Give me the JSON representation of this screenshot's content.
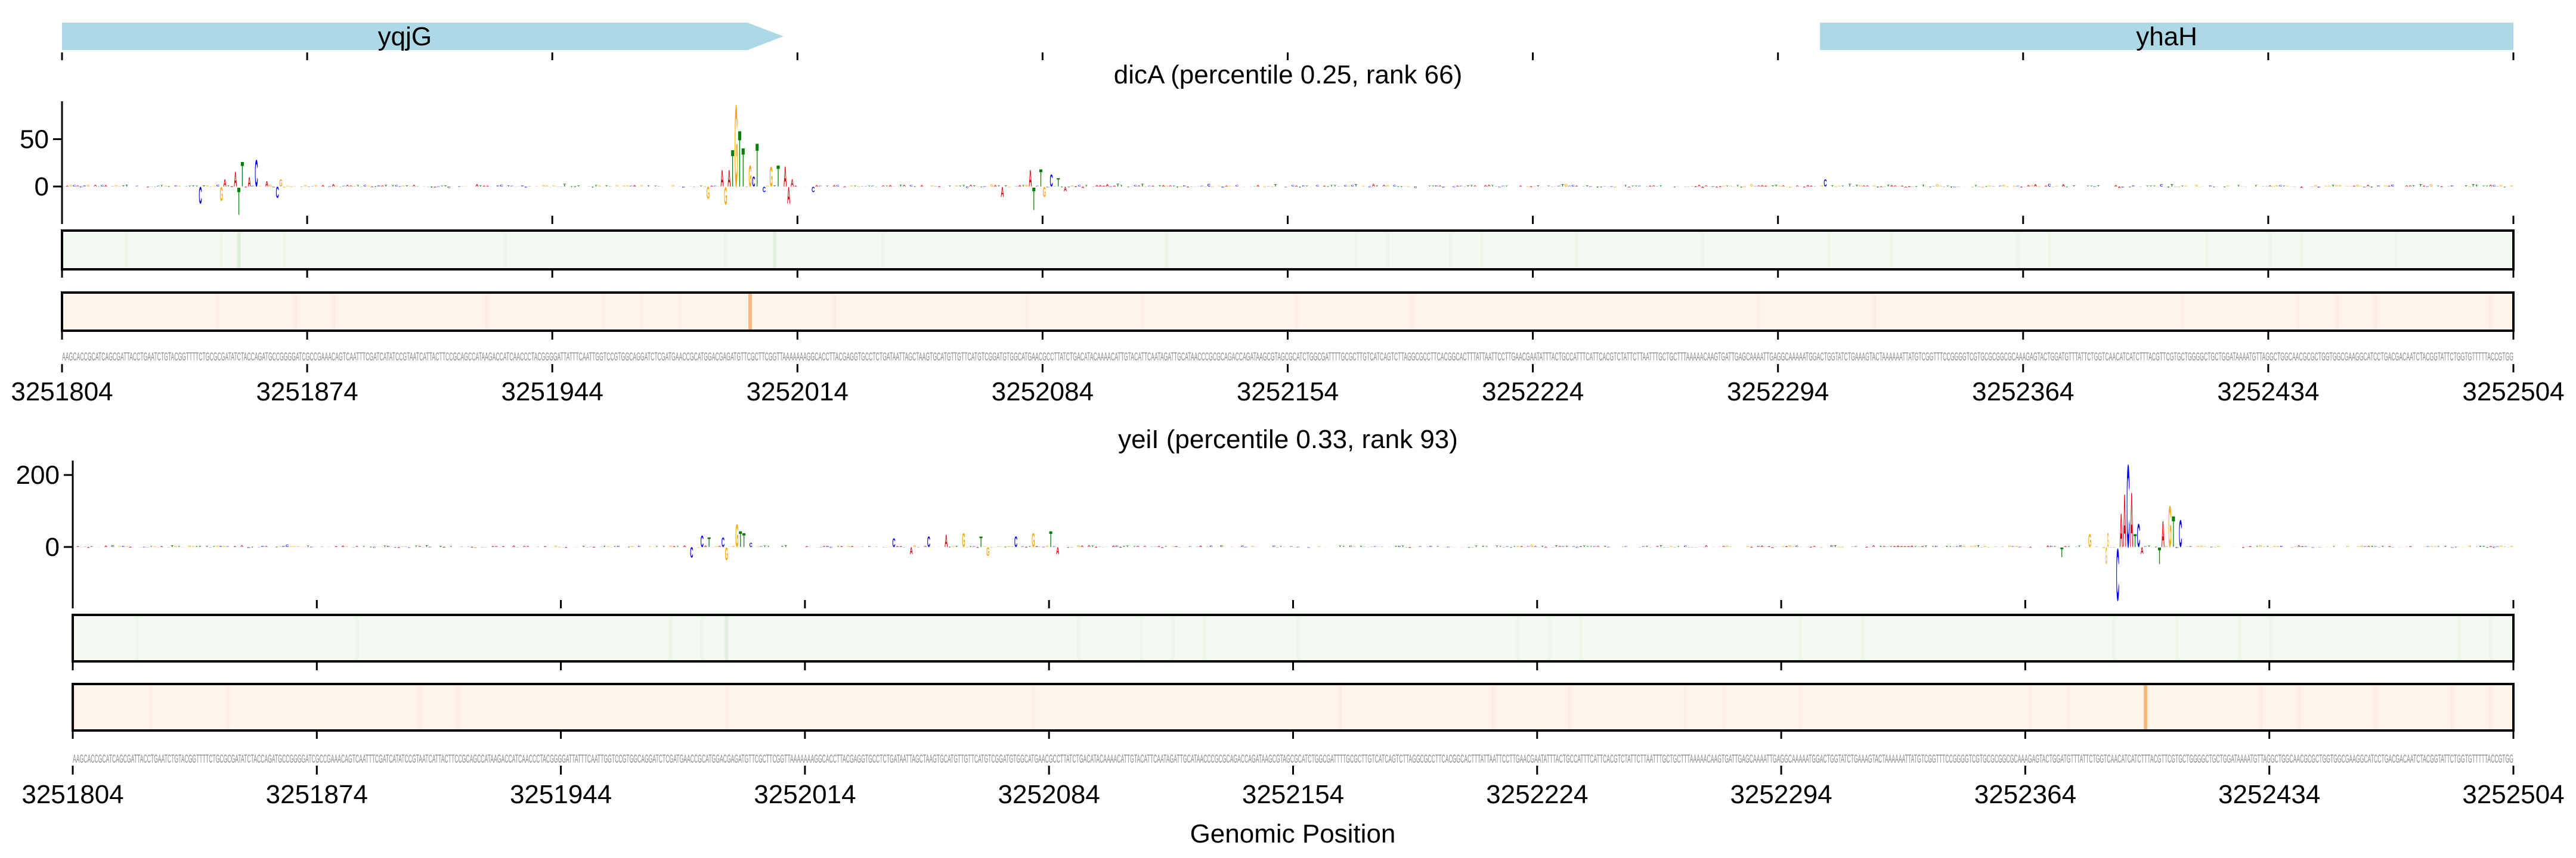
{
  "genes": [
    {
      "name": "yqjG",
      "start": 3251804,
      "end": 3252010,
      "strand": "+"
    },
    {
      "name": "yhaH",
      "start": 3252306,
      "end": 3252504,
      "strand": "+"
    }
  ],
  "colors": {
    "gene": "#add8e6",
    "A": "#e8000b",
    "C": "#0000ff",
    "G": "#ffa500",
    "T": "#008000",
    "green_track": "#f3f9f1",
    "green_mark": "#e1f0dc",
    "orange_track": "#fef4ea",
    "orange_mark": "#f8b97d",
    "sequence": "#8a8a8a"
  },
  "sequence": "AAGCACCGCATCAGCGATTACCTGAATCTGTACGGTTTTCTGCGCGATATCTACCAGATGCCGGGGATCGCCGAAACAGTCAATTTCGATCATATCCGTAATCATTACTTCCGCAGCCATAAGACCATCAACCCTACGGGGATTATTTCAATTGGTCCGTGGCAGGATCTCGATGAACCGCATGGACGAGATGTTCGCTTCGGTTAAAAAAAGGCACCTTACGAGGTGCCTCTGATAATTAGCTAAGTGCATGTTGTTCATGTCGGATGTGGCATGAACGCCTTATCTGACATACAAAACATTGTACATTCAATAGATTGCATAACCCGCGCAGACCAGATAAGCGTAGCGCATCTGGCGATTTTGCGCTTGTCATCAGTCTTAGGCGCCTTCACGGCACTTTATTAATTCCTTGAACGAATATTTACTGCCATTTCATTCACGTCTATTCTTAATTTGCTGCTTTAAAAACAAGTGATTGAGCAAAATTGAGGCAAAAATGGACTGGTATCTGAAAGTACTAAAAAATTATGTCGGTTTCCGGGGTCGTGCGCGGCGCAAAGAGTACTGGATGTTTATTCTGGTCAACATCATCTTTACGTTCGTGCTGGGGCTGCTGGATAAAATGTTAGGCTGGCAACGCGCTGGTGGCGAAGGCATCCTGACGACAATCTACGGTATTCTGGTGTTTTTACCGTGG",
  "x_axis": {
    "label": "Genomic Position",
    "range": [
      3251804,
      3252504
    ],
    "tick_labels": [
      "3251804",
      "3251874",
      "3251944",
      "3252014",
      "3252084",
      "3252154",
      "3252224",
      "3252294",
      "3252364",
      "3252434",
      "3252504"
    ]
  },
  "chart_data": [
    {
      "type": "sequence-logo",
      "title": "dicA (percentile 0.25, rank 66)",
      "ylim": [
        -31,
        90
      ],
      "yticks": [
        {
          "value": 0,
          "label": "0"
        },
        {
          "value": 50,
          "label": "50"
        }
      ],
      "peaks": [
        {
          "pos": 3251843,
          "base": "C",
          "value": -18
        },
        {
          "pos": 3251849,
          "base": "G",
          "value": -15
        },
        {
          "pos": 3251850,
          "base": "A",
          "value": 8
        },
        {
          "pos": 3251853,
          "base": "A",
          "value": 16
        },
        {
          "pos": 3251854,
          "base": "T",
          "value": -30
        },
        {
          "pos": 3251855,
          "base": "T",
          "value": 27
        },
        {
          "pos": 3251857,
          "base": "A",
          "value": 10
        },
        {
          "pos": 3251859,
          "base": "C",
          "value": 29
        },
        {
          "pos": 3251862,
          "base": "A",
          "value": 6
        },
        {
          "pos": 3251865,
          "base": "C",
          "value": -12
        },
        {
          "pos": 3251866,
          "base": "G",
          "value": 8
        },
        {
          "pos": 3251988,
          "base": "G",
          "value": -13
        },
        {
          "pos": 3251992,
          "base": "A",
          "value": 18
        },
        {
          "pos": 3251993,
          "base": "G",
          "value": -19
        },
        {
          "pos": 3251994,
          "base": "A",
          "value": 18
        },
        {
          "pos": 3251995,
          "base": "T",
          "value": 40
        },
        {
          "pos": 3251996,
          "base": "G",
          "value": 89
        },
        {
          "pos": 3251997,
          "base": "T",
          "value": 61
        },
        {
          "pos": 3251998,
          "base": "T",
          "value": 42
        },
        {
          "pos": 3252000,
          "base": "G",
          "value": 23
        },
        {
          "pos": 3252001,
          "base": "C",
          "value": 11
        },
        {
          "pos": 3252002,
          "base": "T",
          "value": 47
        },
        {
          "pos": 3252004,
          "base": "C",
          "value": -6
        },
        {
          "pos": 3252006,
          "base": "G",
          "value": 22
        },
        {
          "pos": 3252008,
          "base": "T",
          "value": 23
        },
        {
          "pos": 3252010,
          "base": "A",
          "value": 22
        },
        {
          "pos": 3252011,
          "base": "A",
          "value": -18
        },
        {
          "pos": 3252012,
          "base": "A",
          "value": 8
        },
        {
          "pos": 3252018,
          "base": "C",
          "value": -6
        },
        {
          "pos": 3252072,
          "base": "A",
          "value": -11
        },
        {
          "pos": 3252080,
          "base": "A",
          "value": 18
        },
        {
          "pos": 3252081,
          "base": "T",
          "value": -25
        },
        {
          "pos": 3252083,
          "base": "T",
          "value": 19
        },
        {
          "pos": 3252084,
          "base": "G",
          "value": -11
        },
        {
          "pos": 3252086,
          "base": "C",
          "value": 13
        },
        {
          "pos": 3252088,
          "base": "T",
          "value": 9
        },
        {
          "pos": 3252090,
          "base": "A",
          "value": -5
        },
        {
          "pos": 3252307,
          "base": "C",
          "value": 8
        }
      ],
      "green_marks": [
        3251854,
        3252007
      ],
      "orange_marks": [
        3252000
      ]
    },
    {
      "type": "sequence-logo",
      "title": "yeiI (percentile 0.33, rank 93)",
      "ylim": [
        -147,
        240
      ],
      "yticks": [
        {
          "value": 0,
          "label": "0"
        },
        {
          "value": 200,
          "label": "200"
        }
      ],
      "peaks": [
        {
          "pos": 3251981,
          "base": "C",
          "value": -30
        },
        {
          "pos": 3251984,
          "base": "C",
          "value": 33
        },
        {
          "pos": 3251986,
          "base": "T",
          "value": 27
        },
        {
          "pos": 3251990,
          "base": "C",
          "value": 28
        },
        {
          "pos": 3251991,
          "base": "G",
          "value": -36
        },
        {
          "pos": 3251994,
          "base": "G",
          "value": 65
        },
        {
          "pos": 3251995,
          "base": "T",
          "value": 45
        },
        {
          "pos": 3251996,
          "base": "T",
          "value": 40
        },
        {
          "pos": 3251998,
          "base": "C",
          "value": 12
        },
        {
          "pos": 3252039,
          "base": "C",
          "value": 25
        },
        {
          "pos": 3252044,
          "base": "A",
          "value": -20
        },
        {
          "pos": 3252049,
          "base": "C",
          "value": 30
        },
        {
          "pos": 3252054,
          "base": "A",
          "value": 35
        },
        {
          "pos": 3252059,
          "base": "G",
          "value": 40
        },
        {
          "pos": 3252064,
          "base": "T",
          "value": 30
        },
        {
          "pos": 3252066,
          "base": "G",
          "value": -25
        },
        {
          "pos": 3252074,
          "base": "C",
          "value": 30
        },
        {
          "pos": 3252079,
          "base": "G",
          "value": 40
        },
        {
          "pos": 3252084,
          "base": "T",
          "value": 45
        },
        {
          "pos": 3252086,
          "base": "A",
          "value": -20
        },
        {
          "pos": 3252374,
          "base": "T",
          "value": -28
        },
        {
          "pos": 3252382,
          "base": "G",
          "value": 38
        },
        {
          "pos": 3252387,
          "base": "G",
          "value": -47
        },
        {
          "pos": 3252387,
          "base": "G",
          "value": 41
        },
        {
          "pos": 3252390,
          "base": "C",
          "value": -149
        },
        {
          "pos": 3252391,
          "base": "A",
          "value": 96
        },
        {
          "pos": 3252392,
          "base": "A",
          "value": 152
        },
        {
          "pos": 3252393,
          "base": "C",
          "value": 237
        },
        {
          "pos": 3252394,
          "base": "A",
          "value": 157
        },
        {
          "pos": 3252395,
          "base": "T",
          "value": 38
        },
        {
          "pos": 3252396,
          "base": "C",
          "value": 66
        },
        {
          "pos": 3252397,
          "base": "A",
          "value": -19
        },
        {
          "pos": 3252402,
          "base": "T",
          "value": -47
        },
        {
          "pos": 3252403,
          "base": "A",
          "value": 74
        },
        {
          "pos": 3252405,
          "base": "G",
          "value": 118
        },
        {
          "pos": 3252406,
          "base": "T",
          "value": 88
        },
        {
          "pos": 3252408,
          "base": "C",
          "value": 77
        }
      ],
      "green_marks": [
        3251991
      ],
      "orange_marks": [
        3252398
      ]
    }
  ]
}
